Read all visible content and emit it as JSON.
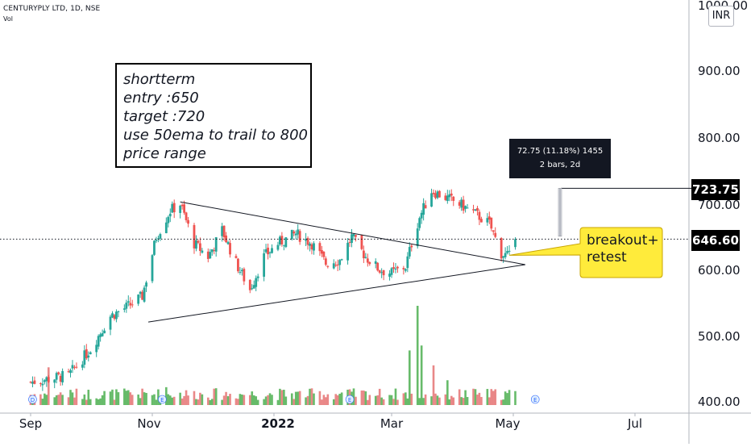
{
  "header": {
    "symbol": "CENTURYPLY LTD, 1D, NSE",
    "volume_label": "Vol"
  },
  "axis": {
    "unit": "INR",
    "top_label": "1000.00"
  },
  "annotation": {
    "lines": [
      "shortterm",
      "entry  :650",
      "target :720",
      "use 50ema to trail to 800",
      "price range"
    ]
  },
  "measure": {
    "line1": "72.75 (11.18%) 1455",
    "line2": "2 bars, 2d"
  },
  "callout": {
    "line1": "breakout+",
    "line2": "retest"
  },
  "price_tags": {
    "target": "723.75",
    "last": "646.60"
  },
  "colors": {
    "up": "#26a69a",
    "down": "#ef5350",
    "up_volume": "#4caf50",
    "down_volume": "#e57373",
    "callout_bg": "#ffeb3b",
    "tag_bg": "#000000"
  },
  "chart_data": {
    "type": "candlestick",
    "title": "CENTURYPLY LTD, 1D, NSE",
    "ylabel": "INR",
    "ylim": [
      390,
      1000
    ],
    "y_ticks": [
      "400.00",
      "500.00",
      "600.00",
      "700.00",
      "800.00",
      "900.00"
    ],
    "x_ticks": [
      "Sep",
      "Nov",
      "2022",
      "Mar",
      "May",
      "Jul"
    ],
    "x_tick_dates": [
      "2021-09-01",
      "2021-11-01",
      "2022-01-01",
      "2022-03-01",
      "2022-05-01",
      "2022-07-01"
    ],
    "price_path": [
      [
        "2021-09-01",
        430
      ],
      [
        "2021-09-20",
        440
      ],
      [
        "2021-10-01",
        480
      ],
      [
        "2021-10-11",
        530
      ],
      [
        "2021-10-20",
        545
      ],
      [
        "2021-10-27",
        560
      ],
      [
        "2021-11-03",
        650
      ],
      [
        "2021-11-10",
        690
      ],
      [
        "2021-11-15",
        700
      ],
      [
        "2021-11-22",
        640
      ],
      [
        "2021-11-29",
        620
      ],
      [
        "2021-12-06",
        660
      ],
      [
        "2021-12-13",
        610
      ],
      [
        "2021-12-20",
        570
      ],
      [
        "2021-12-27",
        620
      ],
      [
        "2022-01-03",
        640
      ],
      [
        "2022-01-12",
        655
      ],
      [
        "2022-01-20",
        640
      ],
      [
        "2022-01-27",
        610
      ],
      [
        "2022-02-03",
        615
      ],
      [
        "2022-02-09",
        650
      ],
      [
        "2022-02-16",
        620
      ],
      [
        "2022-02-23",
        600
      ],
      [
        "2022-03-01",
        595
      ],
      [
        "2022-03-08",
        605
      ],
      [
        "2022-03-11",
        640
      ],
      [
        "2022-03-15",
        680
      ],
      [
        "2022-03-21",
        720
      ],
      [
        "2022-03-28",
        710
      ],
      [
        "2022-04-04",
        700
      ],
      [
        "2022-04-12",
        685
      ],
      [
        "2022-04-19",
        670
      ],
      [
        "2022-04-25",
        625
      ],
      [
        "2022-04-29",
        620
      ],
      [
        "2022-05-02",
        646.6
      ]
    ],
    "volume_spikes": [
      [
        "2021-09-10",
        0.38
      ],
      [
        "2021-11-08",
        0.18
      ],
      [
        "2022-03-10",
        0.55
      ],
      [
        "2022-03-14",
        1.0
      ],
      [
        "2022-03-16",
        0.6
      ],
      [
        "2022-03-22",
        0.4
      ],
      [
        "2022-03-29",
        0.25
      ]
    ],
    "volume_max_shown": 1.0,
    "last_price": 646.6,
    "target_price": 723.75,
    "trendlines": [
      {
        "from": [
          "2021-10-30",
          521
        ],
        "to": [
          "2022-05-07",
          608
        ]
      },
      {
        "from": [
          "2021-11-15",
          703
        ],
        "to": [
          "2022-05-07",
          608
        ]
      }
    ],
    "measure_range": {
      "from": 651,
      "to": 723.75,
      "change": "72.75 (11.18%) 1455",
      "bars": "2 bars, 2d"
    },
    "markers": [
      {
        "date": "2021-09-02",
        "letter": "D"
      },
      {
        "date": "2021-11-06",
        "letter": "E"
      },
      {
        "date": "2022-02-08",
        "letter": "E"
      },
      {
        "date": "2022-05-12",
        "letter": "E"
      }
    ]
  }
}
